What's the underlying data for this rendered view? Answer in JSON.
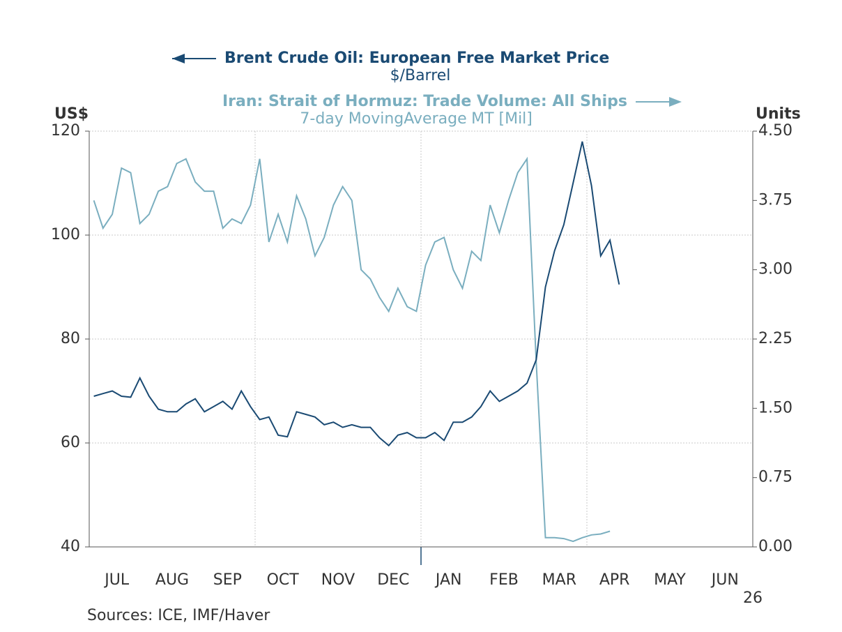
{
  "chart_data": {
    "type": "line",
    "ylabel": "US$",
    "y2label": "Units",
    "year_label": "26",
    "source": "Sources:  ICE, IMF/Haver",
    "categories": [
      null,
      null,
      null,
      "JUL",
      null,
      null,
      null,
      null,
      null,
      "AUG",
      null,
      null,
      null,
      null,
      null,
      "SEP",
      null,
      null,
      null,
      null,
      null,
      "OCT",
      null,
      null,
      null,
      null,
      null,
      "NOV",
      null,
      null,
      null,
      null,
      null,
      "DEC",
      null,
      null,
      null,
      null,
      null,
      "JAN",
      null,
      null,
      null,
      null,
      null,
      "FEB",
      null,
      null,
      null,
      null,
      null,
      "MAR",
      null,
      null,
      null,
      null,
      null,
      "APR",
      null,
      null,
      null,
      null,
      null,
      "MAY",
      null,
      null,
      null,
      null,
      null,
      "JUN",
      null,
      null
    ],
    "series": [
      {
        "name": "Brent Crude Oil: European Free Market Price",
        "unit": "$/Barrel",
        "color": "#1a4a73",
        "values": [
          69,
          69.5,
          70,
          69,
          68.8,
          72.5,
          69,
          66.5,
          66,
          66,
          67.5,
          68.5,
          66,
          67,
          68,
          66.5,
          70,
          67,
          64.5,
          65,
          61.5,
          61.2,
          66,
          65.5,
          65,
          63.5,
          64,
          63,
          63.5,
          63,
          63,
          61,
          59.5,
          61.5,
          62,
          61,
          61,
          62,
          60.5,
          64,
          64,
          65,
          67,
          70,
          68,
          69,
          70,
          71.5,
          76,
          90,
          97,
          102,
          110,
          118,
          109.5,
          96,
          99,
          90.5,
          null,
          null,
          null,
          null,
          null,
          null,
          null,
          null,
          null,
          null,
          null,
          null,
          null,
          null
        ]
      },
      {
        "name": "Iran: Strait of Hormuz: Trade Volume: All Ships",
        "note": "7-day MovingAverage",
        "unit": "MT [Mil]",
        "color": "#7aaebf",
        "axis": "y2",
        "values": [
          3.75,
          3.45,
          3.6,
          4.1,
          4.05,
          3.5,
          3.6,
          3.85,
          3.9,
          4.15,
          4.2,
          3.95,
          3.85,
          3.85,
          3.45,
          3.55,
          3.5,
          3.7,
          4.2,
          3.3,
          3.6,
          3.3,
          3.8,
          3.55,
          3.15,
          3.35,
          3.7,
          3.9,
          3.75,
          3.0,
          2.9,
          2.7,
          2.55,
          2.8,
          2.6,
          2.55,
          3.05,
          3.3,
          3.35,
          3.0,
          2.8,
          3.2,
          3.1,
          3.7,
          3.4,
          3.75,
          4.05,
          4.2,
          2.0,
          0.1,
          0.1,
          0.09,
          0.06,
          0.1,
          0.13,
          0.14,
          0.17,
          null,
          null,
          null,
          null,
          null,
          null,
          null,
          null,
          null,
          null,
          null,
          null,
          null,
          null,
          null
        ]
      }
    ],
    "ylim": [
      40,
      120
    ],
    "yticks": [
      40,
      60,
      80,
      100,
      120
    ],
    "y2lim": [
      0,
      4.5
    ],
    "y2ticks": [
      {
        "value": 0,
        "label": "0.00"
      },
      0.75,
      {
        "value": 1.5,
        "label": "1.50"
      },
      2.25,
      {
        "value": 3,
        "label": "3.00"
      },
      3.75,
      {
        "value": 4.5,
        "label": "4.50"
      }
    ],
    "grid": true
  }
}
